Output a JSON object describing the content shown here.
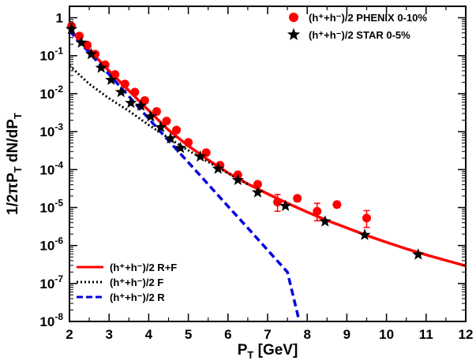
{
  "chart_data": {
    "type": "scatter",
    "xlabel": {
      "main": "P",
      "sub": "T",
      "rest": " [GeV]"
    },
    "ylabel": {
      "parts": [
        [
          "1/2πP",
          ""
        ],
        [
          "T",
          "sub"
        ],
        [
          " dN/dP",
          ""
        ],
        [
          "T",
          "sub"
        ]
      ]
    },
    "xlim": [
      2,
      12
    ],
    "ylim": [
      1e-08,
      2
    ],
    "yscale": "log",
    "x_ticks": [
      "2",
      "3",
      "4",
      "5",
      "6",
      "7",
      "8",
      "9",
      "10",
      "11",
      "12"
    ],
    "y_ticks": [
      {
        "base": "1",
        "exp": ""
      },
      {
        "base": "10",
        "exp": "-1"
      },
      {
        "base": "10",
        "exp": "-2"
      },
      {
        "base": "10",
        "exp": "-3"
      },
      {
        "base": "10",
        "exp": "-4"
      },
      {
        "base": "10",
        "exp": "-5"
      },
      {
        "base": "10",
        "exp": "-6"
      },
      {
        "base": "10",
        "exp": "-7"
      },
      {
        "base": "10",
        "exp": "-8"
      }
    ],
    "legend_top": [
      {
        "name": "(h⁺+h⁻)/2 PHENIX 0-10%",
        "marker": "circle",
        "color": "#ff0000"
      },
      {
        "name": "(h⁺+h⁻)/2 STAR 0-5%",
        "marker": "star",
        "color": "#000000"
      }
    ],
    "legend_bottom": [
      {
        "name": "(h⁺+h⁻)/2 R+F",
        "style": "solid",
        "color": "#ff0000"
      },
      {
        "name": "(h⁺+h⁻)/2 F",
        "style": "dotted",
        "color": "#000000"
      },
      {
        "name": "(h⁺+h⁻)/2 R",
        "style": "dashed",
        "color": "#0000dd"
      }
    ],
    "phenix": [
      {
        "x": 2.05,
        "y": 0.6
      },
      {
        "x": 2.25,
        "y": 0.33
      },
      {
        "x": 2.45,
        "y": 0.19
      },
      {
        "x": 2.65,
        "y": 0.11
      },
      {
        "x": 2.9,
        "y": 0.058
      },
      {
        "x": 3.15,
        "y": 0.032
      },
      {
        "x": 3.4,
        "y": 0.018
      },
      {
        "x": 3.65,
        "y": 0.011
      },
      {
        "x": 3.9,
        "y": 0.0066
      },
      {
        "x": 4.2,
        "y": 0.0034
      },
      {
        "x": 4.45,
        "y": 0.0019
      },
      {
        "x": 4.7,
        "y": 0.0011
      },
      {
        "x": 5.0,
        "y": 0.00052
      },
      {
        "x": 5.45,
        "y": 0.00028
      },
      {
        "x": 5.8,
        "y": 0.00013
      },
      {
        "x": 6.25,
        "y": 7.3e-05
      },
      {
        "x": 6.75,
        "y": 4.1e-05
      },
      {
        "x": 7.25,
        "y": 1.4e-05,
        "yerr": [
          6e-06,
          8e-06
        ]
      },
      {
        "x": 7.75,
        "y": 1.75e-05,
        "yerr": [
          3e-06,
          3e-06
        ]
      },
      {
        "x": 8.25,
        "y": 8e-06,
        "yerr": [
          3.5e-06,
          5e-06
        ]
      },
      {
        "x": 8.75,
        "y": 1.2e-05,
        "yerr": [
          2e-06,
          2e-06
        ]
      },
      {
        "x": 9.5,
        "y": 5.3e-06,
        "yerr": [
          2.3e-06,
          3e-06
        ]
      }
    ],
    "star": [
      {
        "x": 2.05,
        "y": 0.5
      },
      {
        "x": 2.3,
        "y": 0.22
      },
      {
        "x": 2.55,
        "y": 0.11
      },
      {
        "x": 2.8,
        "y": 0.048
      },
      {
        "x": 3.05,
        "y": 0.023
      },
      {
        "x": 3.3,
        "y": 0.011
      },
      {
        "x": 3.55,
        "y": 0.0057
      },
      {
        "x": 3.8,
        "y": 0.0048
      },
      {
        "x": 4.05,
        "y": 0.0025
      },
      {
        "x": 4.3,
        "y": 0.0013
      },
      {
        "x": 4.55,
        "y": 0.00066
      },
      {
        "x": 4.8,
        "y": 0.00037
      },
      {
        "x": 5.3,
        "y": 0.00022
      },
      {
        "x": 5.75,
        "y": 0.000105
      },
      {
        "x": 6.25,
        "y": 5.3e-05
      },
      {
        "x": 6.75,
        "y": 2.5e-05
      },
      {
        "x": 7.45,
        "y": 1.1e-05
      },
      {
        "x": 8.45,
        "y": 4.3e-06
      },
      {
        "x": 9.45,
        "y": 1.9e-06
      },
      {
        "x": 10.8,
        "y": 5.8e-07
      }
    ],
    "curve_RF": [
      [
        2.0,
        0.5
      ],
      [
        2.5,
        0.14
      ],
      [
        3.0,
        0.04
      ],
      [
        3.5,
        0.012
      ],
      [
        4.0,
        0.0036
      ],
      [
        4.5,
        0.0011
      ],
      [
        5.0,
        0.00042
      ],
      [
        5.5,
        0.00018
      ],
      [
        6.0,
        8.2e-05
      ],
      [
        6.5,
        4.2e-05
      ],
      [
        7.0,
        2.3e-05
      ],
      [
        7.5,
        1.3e-05
      ],
      [
        8.0,
        7.6e-06
      ],
      [
        8.5,
        4.6e-06
      ],
      [
        9.0,
        2.9e-06
      ],
      [
        9.5,
        1.85e-06
      ],
      [
        10.0,
        1.22e-06
      ],
      [
        10.5,
        8.2e-07
      ],
      [
        11.0,
        5.7e-07
      ],
      [
        11.5,
        4.05e-07
      ],
      [
        12.0,
        2.9e-07
      ]
    ],
    "curve_F": [
      [
        2.0,
        0.055
      ],
      [
        2.5,
        0.018
      ],
      [
        3.0,
        0.0075
      ],
      [
        3.5,
        0.0035
      ],
      [
        4.0,
        0.0015
      ],
      [
        4.5,
        0.00068
      ],
      [
        5.0,
        0.00032
      ],
      [
        5.5,
        0.00016
      ],
      [
        6.0,
        8e-05
      ],
      [
        6.5,
        4.1e-05
      ]
    ],
    "curve_R": [
      [
        2.0,
        0.45
      ],
      [
        2.5,
        0.12
      ],
      [
        3.0,
        0.032
      ],
      [
        3.5,
        0.0085
      ],
      [
        4.0,
        0.0022
      ],
      [
        4.5,
        0.00058
      ],
      [
        5.0,
        0.000155
      ],
      [
        5.5,
        4.1e-05
      ],
      [
        6.0,
        1.08e-05
      ],
      [
        6.5,
        2.9e-06
      ],
      [
        7.0,
        7.6e-07
      ],
      [
        7.5,
        2e-07
      ],
      [
        7.8,
        1e-08
      ]
    ]
  }
}
